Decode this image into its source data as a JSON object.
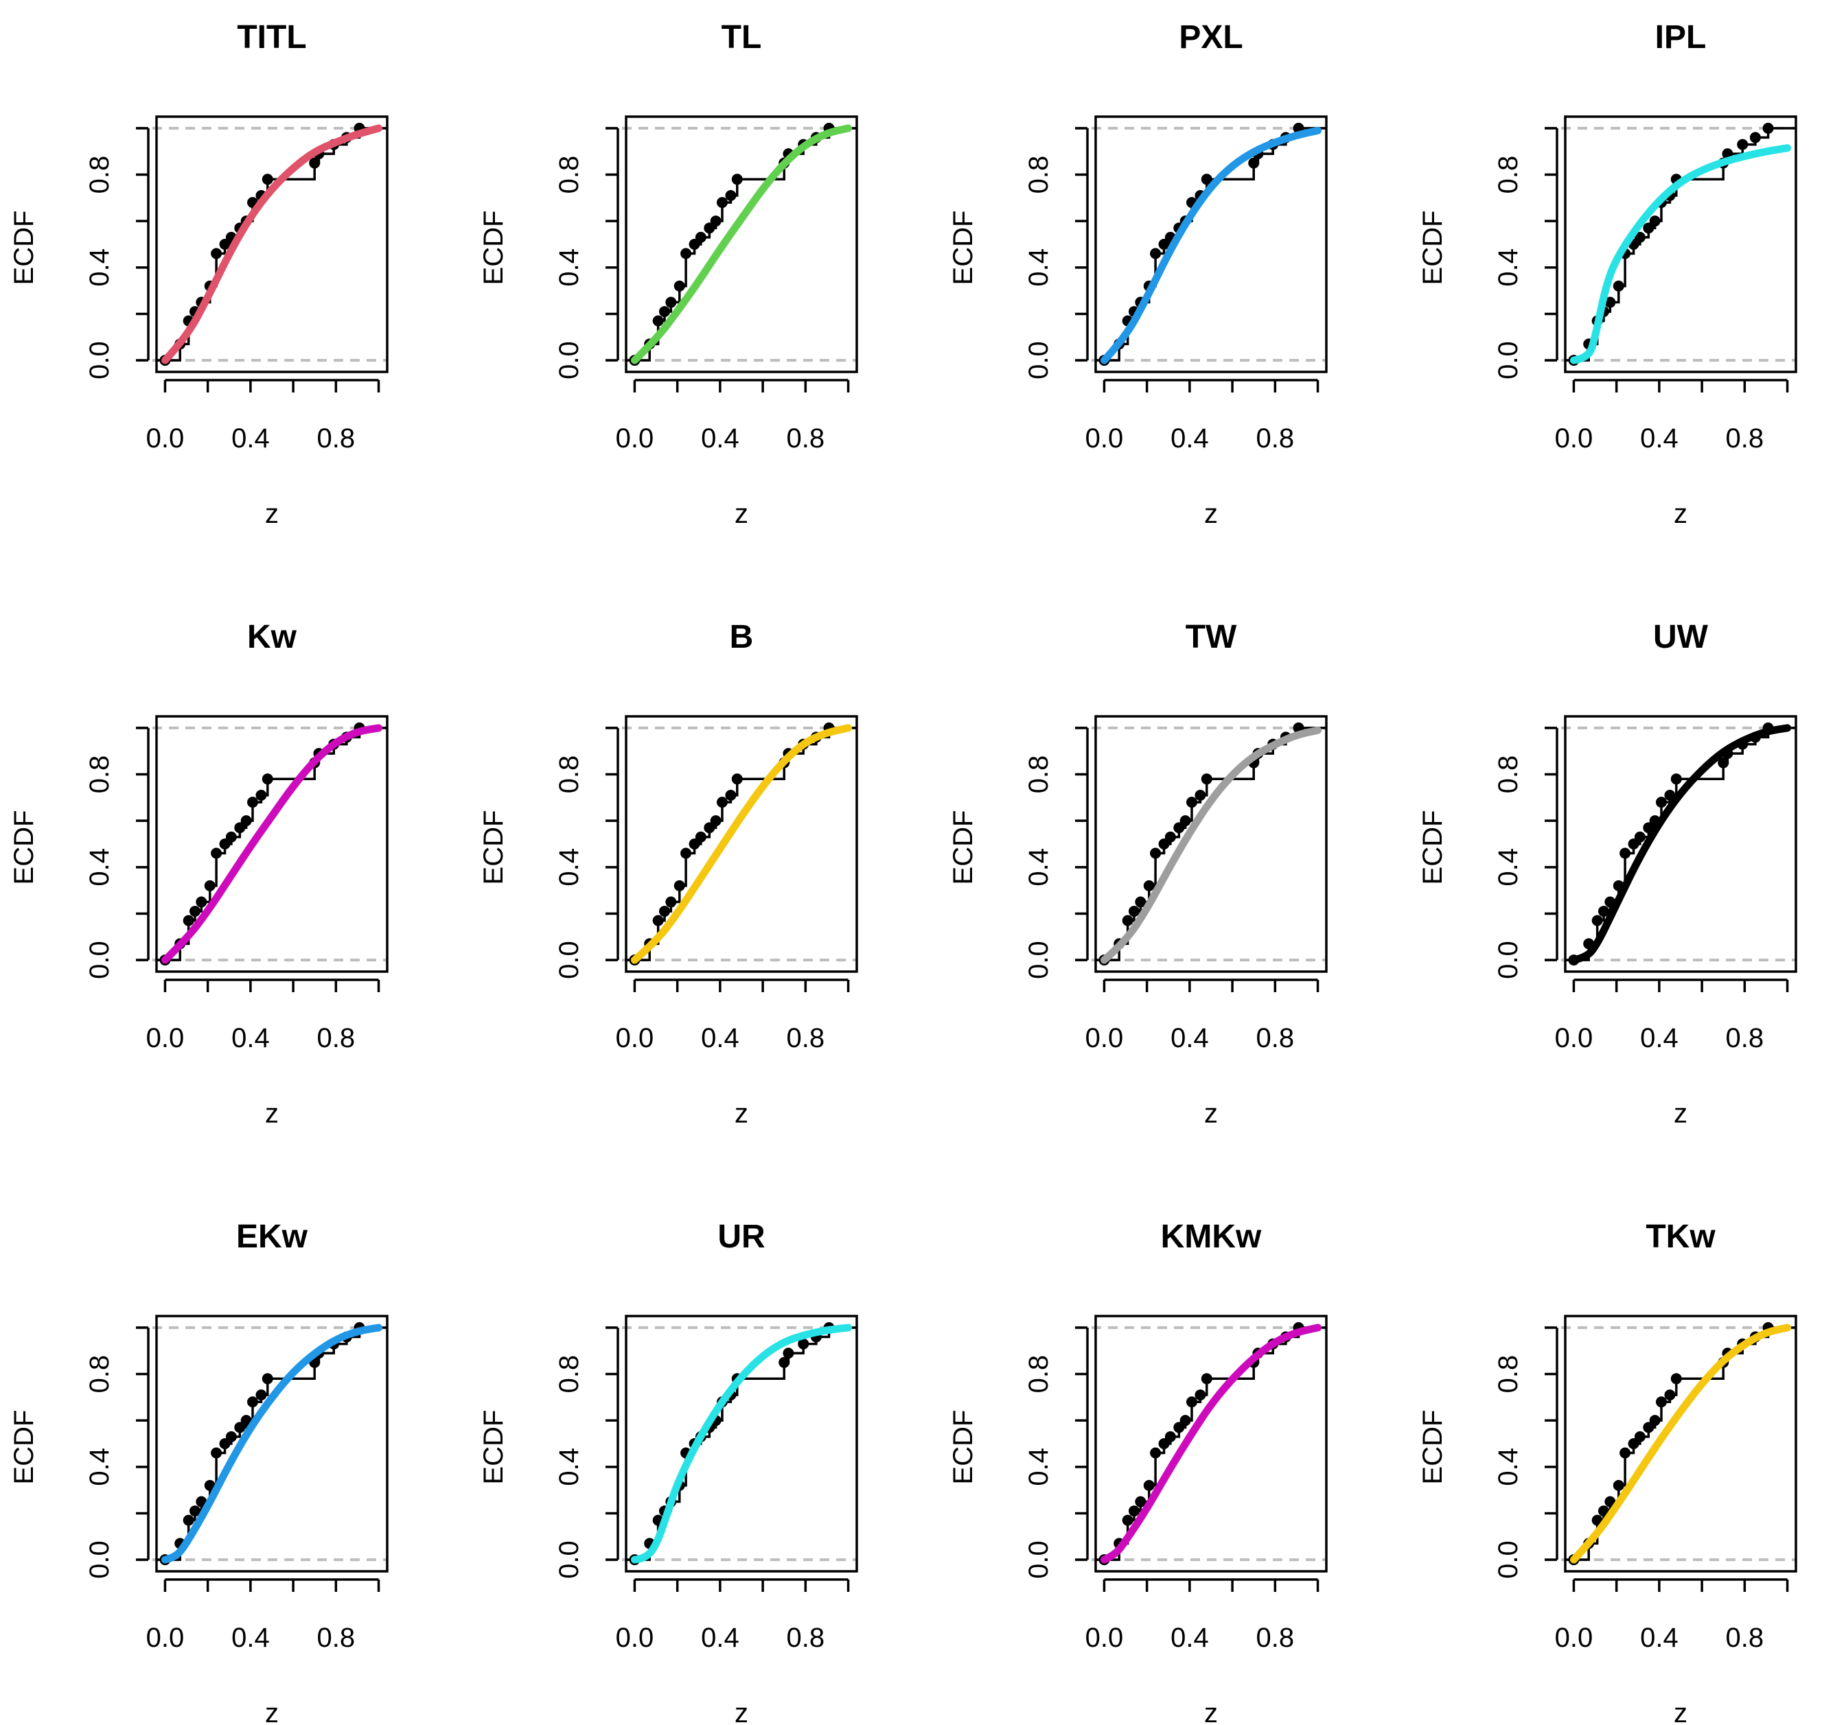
{
  "chart_data": [
    {
      "type": "line",
      "title": "TITL",
      "xlabel": "z",
      "ylabel": "ECDF",
      "color": "#DF536B",
      "curve": [
        [
          0,
          0
        ],
        [
          0.1,
          0.1
        ],
        [
          0.2,
          0.27
        ],
        [
          0.3,
          0.46
        ],
        [
          0.4,
          0.62
        ],
        [
          0.5,
          0.74
        ],
        [
          0.6,
          0.83
        ],
        [
          0.7,
          0.9
        ],
        [
          0.8,
          0.94
        ],
        [
          0.9,
          0.975
        ],
        [
          1,
          1
        ]
      ]
    },
    {
      "type": "line",
      "title": "TL",
      "xlabel": "z",
      "ylabel": "ECDF",
      "color": "#61D04F",
      "curve": [
        [
          0,
          0
        ],
        [
          0.1,
          0.09
        ],
        [
          0.2,
          0.21
        ],
        [
          0.3,
          0.34
        ],
        [
          0.4,
          0.48
        ],
        [
          0.5,
          0.61
        ],
        [
          0.6,
          0.74
        ],
        [
          0.7,
          0.85
        ],
        [
          0.8,
          0.93
        ],
        [
          0.9,
          0.98
        ],
        [
          1,
          1
        ]
      ]
    },
    {
      "type": "line",
      "title": "PXL",
      "xlabel": "z",
      "ylabel": "ECDF",
      "color": "#2297E6",
      "curve": [
        [
          0,
          0
        ],
        [
          0.1,
          0.1
        ],
        [
          0.2,
          0.27
        ],
        [
          0.3,
          0.46
        ],
        [
          0.4,
          0.62
        ],
        [
          0.5,
          0.75
        ],
        [
          0.6,
          0.84
        ],
        [
          0.7,
          0.9
        ],
        [
          0.8,
          0.94
        ],
        [
          0.9,
          0.97
        ],
        [
          1,
          0.99
        ]
      ]
    },
    {
      "type": "line",
      "title": "IPL",
      "xlabel": "z",
      "ylabel": "ECDF",
      "color": "#28E2E5",
      "curve": [
        [
          0,
          0
        ],
        [
          0.07,
          0.01
        ],
        [
          0.1,
          0.1
        ],
        [
          0.15,
          0.32
        ],
        [
          0.2,
          0.44
        ],
        [
          0.3,
          0.58
        ],
        [
          0.4,
          0.69
        ],
        [
          0.5,
          0.77
        ],
        [
          0.6,
          0.82
        ],
        [
          0.7,
          0.855
        ],
        [
          0.8,
          0.88
        ],
        [
          0.9,
          0.9
        ],
        [
          1,
          0.915
        ]
      ]
    },
    {
      "type": "line",
      "title": "Kw",
      "xlabel": "z",
      "ylabel": "ECDF",
      "color": "#CD0BBC",
      "curve": [
        [
          0,
          0
        ],
        [
          0.1,
          0.09
        ],
        [
          0.2,
          0.21
        ],
        [
          0.3,
          0.35
        ],
        [
          0.4,
          0.49
        ],
        [
          0.5,
          0.62
        ],
        [
          0.6,
          0.75
        ],
        [
          0.7,
          0.86
        ],
        [
          0.8,
          0.94
        ],
        [
          0.9,
          0.985
        ],
        [
          1,
          1
        ]
      ]
    },
    {
      "type": "line",
      "title": "B",
      "xlabel": "z",
      "ylabel": "ECDF",
      "color": "#F5C710",
      "curve": [
        [
          0,
          0
        ],
        [
          0.1,
          0.08
        ],
        [
          0.2,
          0.2
        ],
        [
          0.3,
          0.34
        ],
        [
          0.4,
          0.48
        ],
        [
          0.5,
          0.62
        ],
        [
          0.6,
          0.75
        ],
        [
          0.7,
          0.86
        ],
        [
          0.8,
          0.94
        ],
        [
          0.9,
          0.98
        ],
        [
          1,
          1
        ]
      ]
    },
    {
      "type": "line",
      "title": "TW",
      "xlabel": "z",
      "ylabel": "ECDF",
      "color": "#9E9E9E",
      "curve": [
        [
          0,
          0
        ],
        [
          0.1,
          0.08
        ],
        [
          0.2,
          0.22
        ],
        [
          0.3,
          0.39
        ],
        [
          0.4,
          0.55
        ],
        [
          0.5,
          0.69
        ],
        [
          0.6,
          0.8
        ],
        [
          0.7,
          0.88
        ],
        [
          0.8,
          0.93
        ],
        [
          0.9,
          0.97
        ],
        [
          1,
          0.99
        ]
      ]
    },
    {
      "type": "line",
      "title": "UW",
      "xlabel": "z",
      "ylabel": "ECDF",
      "color": "#000000",
      "curve": [
        [
          0,
          0
        ],
        [
          0.05,
          0.01
        ],
        [
          0.1,
          0.05
        ],
        [
          0.2,
          0.24
        ],
        [
          0.3,
          0.43
        ],
        [
          0.4,
          0.59
        ],
        [
          0.5,
          0.72
        ],
        [
          0.6,
          0.82
        ],
        [
          0.7,
          0.9
        ],
        [
          0.8,
          0.95
        ],
        [
          0.9,
          0.985
        ],
        [
          1,
          1
        ]
      ]
    },
    {
      "type": "line",
      "title": "EKw",
      "xlabel": "z",
      "ylabel": "ECDF",
      "color": "#2297E6",
      "curve": [
        [
          0,
          0
        ],
        [
          0.05,
          0.01
        ],
        [
          0.1,
          0.07
        ],
        [
          0.2,
          0.23
        ],
        [
          0.3,
          0.41
        ],
        [
          0.4,
          0.57
        ],
        [
          0.5,
          0.7
        ],
        [
          0.6,
          0.81
        ],
        [
          0.7,
          0.89
        ],
        [
          0.8,
          0.95
        ],
        [
          0.9,
          0.985
        ],
        [
          1,
          1
        ]
      ]
    },
    {
      "type": "line",
      "title": "UR",
      "xlabel": "z",
      "ylabel": "ECDF",
      "color": "#28E2E5",
      "curve": [
        [
          0,
          0
        ],
        [
          0.05,
          0.005
        ],
        [
          0.1,
          0.06
        ],
        [
          0.15,
          0.19
        ],
        [
          0.2,
          0.33
        ],
        [
          0.3,
          0.52
        ],
        [
          0.4,
          0.67
        ],
        [
          0.5,
          0.79
        ],
        [
          0.6,
          0.88
        ],
        [
          0.7,
          0.94
        ],
        [
          0.8,
          0.97
        ],
        [
          0.9,
          0.99
        ],
        [
          1,
          1
        ]
      ]
    },
    {
      "type": "line",
      "title": "KMKw",
      "xlabel": "z",
      "ylabel": "ECDF",
      "color": "#CD0BBC",
      "curve": [
        [
          0,
          0
        ],
        [
          0.05,
          0.02
        ],
        [
          0.1,
          0.08
        ],
        [
          0.2,
          0.22
        ],
        [
          0.3,
          0.38
        ],
        [
          0.4,
          0.53
        ],
        [
          0.5,
          0.67
        ],
        [
          0.6,
          0.78
        ],
        [
          0.7,
          0.87
        ],
        [
          0.8,
          0.94
        ],
        [
          0.9,
          0.98
        ],
        [
          1,
          1
        ]
      ]
    },
    {
      "type": "line",
      "title": "TKw",
      "xlabel": "z",
      "ylabel": "ECDF",
      "color": "#F5C710",
      "curve": [
        [
          0,
          0
        ],
        [
          0.1,
          0.1
        ],
        [
          0.2,
          0.23
        ],
        [
          0.3,
          0.37
        ],
        [
          0.4,
          0.51
        ],
        [
          0.5,
          0.64
        ],
        [
          0.6,
          0.76
        ],
        [
          0.7,
          0.86
        ],
        [
          0.8,
          0.93
        ],
        [
          0.9,
          0.98
        ],
        [
          1,
          1
        ]
      ]
    }
  ],
  "ecdf_points": [
    [
      0.0,
      0.0
    ],
    [
      0.07,
      0.07
    ],
    [
      0.11,
      0.17
    ],
    [
      0.14,
      0.21
    ],
    [
      0.17,
      0.25
    ],
    [
      0.21,
      0.32
    ],
    [
      0.24,
      0.46
    ],
    [
      0.28,
      0.5
    ],
    [
      0.31,
      0.53
    ],
    [
      0.35,
      0.57
    ],
    [
      0.38,
      0.6
    ],
    [
      0.41,
      0.68
    ],
    [
      0.45,
      0.71
    ],
    [
      0.48,
      0.78
    ],
    [
      0.7,
      0.85
    ],
    [
      0.72,
      0.89
    ],
    [
      0.79,
      0.93
    ],
    [
      0.85,
      0.96
    ],
    [
      0.91,
      1.0
    ]
  ],
  "axis_ticks": {
    "x": [
      "0.0",
      "0.4",
      "0.8"
    ],
    "y": [
      "0.0",
      "0.4",
      "0.8"
    ]
  }
}
